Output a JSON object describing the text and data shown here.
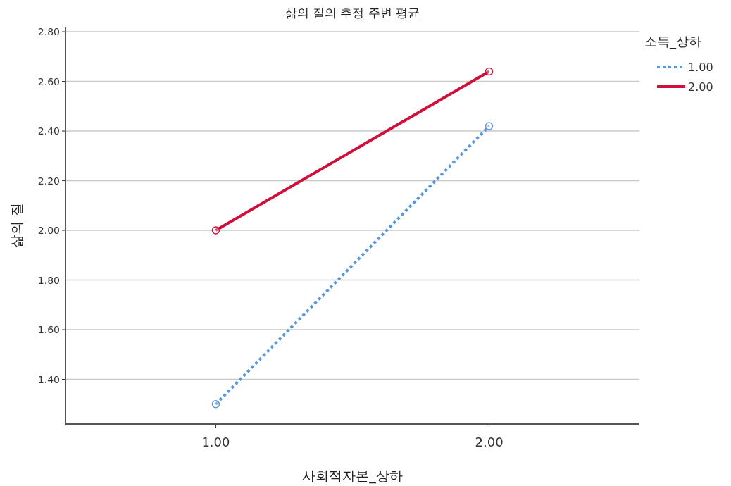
{
  "chart_data": {
    "type": "line",
    "title": "삶의 질의 추정 주변 평균",
    "xlabel": "사회적자본_상하",
    "ylabel": "삶의 질",
    "legend_title": "소득_상하",
    "categories": [
      "1.00",
      "2.00"
    ],
    "series": [
      {
        "name": "1.00",
        "color": "#5b97dc",
        "line_style": "dotted",
        "values": [
          1.3,
          2.42
        ]
      },
      {
        "name": "2.00",
        "color": "#d0103a",
        "line_style": "solid",
        "values": [
          2.0,
          2.64
        ]
      }
    ],
    "ylim": [
      1.22,
      2.82
    ],
    "yticks": [
      {
        "value": 1.4,
        "label": "1.40"
      },
      {
        "value": 1.6,
        "label": "1.60"
      },
      {
        "value": 1.8,
        "label": "1.80"
      },
      {
        "value": 2.0,
        "label": "2.00"
      },
      {
        "value": 2.2,
        "label": "2.20"
      },
      {
        "value": 2.4,
        "label": "2.40"
      },
      {
        "value": 2.6,
        "label": "2.60"
      },
      {
        "value": 2.8,
        "label": "2.80"
      }
    ],
    "grid": "y",
    "legend": "top right",
    "marker": "circle"
  }
}
